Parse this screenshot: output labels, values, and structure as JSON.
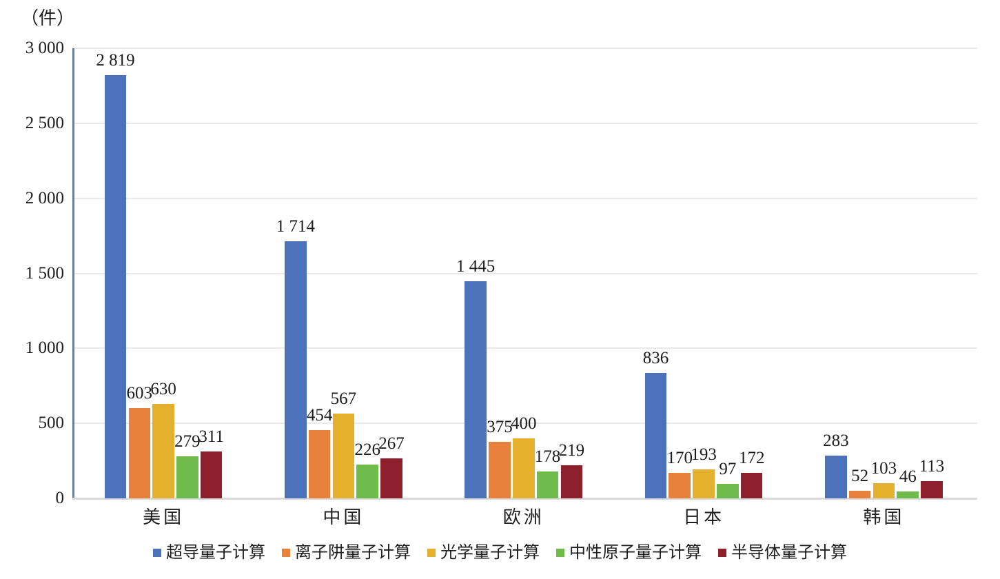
{
  "chart_data": {
    "type": "bar",
    "title": "",
    "unit_label": "（件）",
    "categories": [
      "美国",
      "中国",
      "欧洲",
      "日本",
      "韩国"
    ],
    "series": [
      {
        "name": "超导量子计算",
        "color": "#4c72bc",
        "values": [
          2819,
          1714,
          1445,
          836,
          283
        ]
      },
      {
        "name": "离子阱量子计算",
        "color": "#e8813b",
        "values": [
          603,
          454,
          375,
          170,
          52
        ]
      },
      {
        "name": "光学量子计算",
        "color": "#e5b02e",
        "values": [
          630,
          567,
          400,
          193,
          103
        ]
      },
      {
        "name": "中性原子量子计算",
        "color": "#6fbc4d",
        "values": [
          279,
          226,
          178,
          97,
          46
        ]
      },
      {
        "name": "半导体量子计算",
        "color": "#8e1f2d",
        "values": [
          311,
          267,
          219,
          172,
          113
        ]
      }
    ],
    "ylim": [
      0,
      3000
    ],
    "ytick_step": 500,
    "ytick_labels": [
      "0",
      "500",
      "1 000",
      "1 500",
      "2 000",
      "2 500",
      "3 000"
    ],
    "data_labels_visible": true,
    "number_format": "space-thousands",
    "grid": "horizontal",
    "legend_position": "bottom",
    "colors": {
      "gridline": "#e9e9e9",
      "y_axis_line": "#5c7fbc",
      "x_axis_line": "#d9d9d9",
      "text": "#1f1f1f",
      "background": "#ffffff"
    }
  }
}
